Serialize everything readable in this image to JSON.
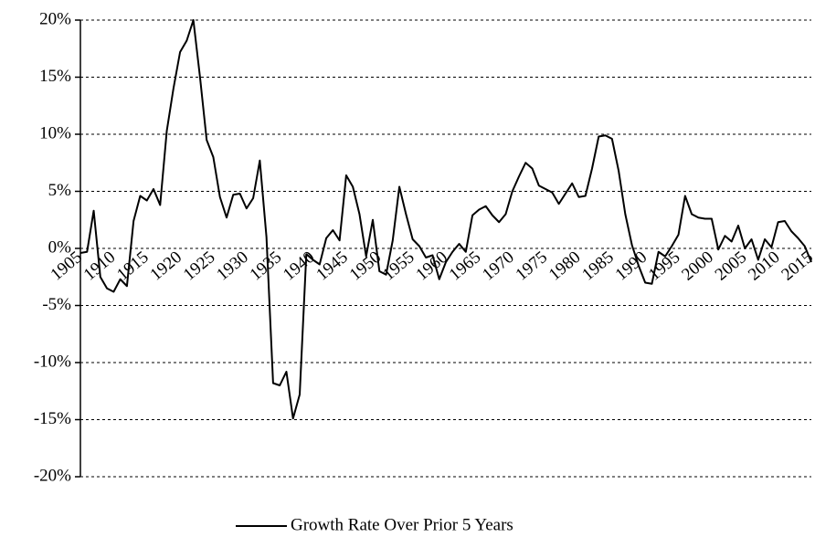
{
  "chart_data": {
    "type": "line",
    "x": [
      1905,
      1906,
      1907,
      1908,
      1909,
      1910,
      1911,
      1912,
      1913,
      1914,
      1915,
      1916,
      1917,
      1918,
      1919,
      1920,
      1921,
      1922,
      1923,
      1924,
      1925,
      1926,
      1927,
      1928,
      1929,
      1930,
      1931,
      1932,
      1933,
      1934,
      1935,
      1936,
      1937,
      1938,
      1939,
      1940,
      1941,
      1942,
      1943,
      1944,
      1945,
      1946,
      1947,
      1948,
      1949,
      1950,
      1951,
      1952,
      1953,
      1954,
      1955,
      1956,
      1957,
      1958,
      1959,
      1960,
      1961,
      1962,
      1963,
      1964,
      1965,
      1966,
      1967,
      1968,
      1969,
      1970,
      1971,
      1972,
      1973,
      1974,
      1975,
      1976,
      1977,
      1978,
      1979,
      1980,
      1981,
      1982,
      1983,
      1984,
      1985,
      1986,
      1987,
      1988,
      1989,
      1990,
      1991,
      1992,
      1993,
      1994,
      1995,
      1996,
      1997,
      1998,
      1999,
      2000,
      2001,
      2002,
      2003,
      2004,
      2005,
      2006,
      2007,
      2008,
      2009,
      2010,
      2011,
      2012,
      2013,
      2014,
      2015
    ],
    "series": [
      {
        "name": "Growth Rate Over Prior 5 Years",
        "color": "#000000",
        "values": [
          -0.4,
          -0.3,
          3.3,
          -2.5,
          -3.5,
          -3.8,
          -2.7,
          -3.3,
          2.4,
          4.6,
          4.2,
          5.2,
          3.8,
          10.3,
          14,
          17.2,
          18.2,
          20,
          15,
          9.5,
          8,
          4.5,
          2.7,
          4.7,
          4.8,
          3.5,
          4.4,
          7.7,
          1,
          -11.8,
          -12,
          -10.8,
          -14.9,
          -12.8,
          -0.5,
          -1,
          -1.4,
          0.9,
          1.6,
          0.7,
          6.4,
          5.4,
          3,
          -0.7,
          2.5,
          -2,
          -2.3,
          0.7,
          5.4,
          3,
          0.8,
          0.2,
          -0.8,
          -0.6,
          -2.7,
          -1.2,
          -0.3,
          0.4,
          -0.3,
          2.9,
          3.4,
          3.7,
          2.9,
          2.3,
          3,
          5,
          6.3,
          7.5,
          7,
          5.5,
          5.2,
          4.9,
          3.9,
          4.8,
          5.7,
          4.5,
          4.6,
          7,
          9.8,
          9.9,
          9.6,
          6.8,
          3,
          0.3,
          -1.5,
          -3,
          -3.1,
          -0.3,
          -0.7,
          0.2,
          1.2,
          4.6,
          3,
          2.7,
          2.6,
          2.6,
          -0.1,
          1.1,
          0.6,
          2,
          0,
          0.8,
          -1,
          0.8,
          0.1,
          2.3,
          2.4,
          1.5,
          0.9,
          0.2,
          -1.2
        ]
      }
    ],
    "xlim": [
      1905,
      2015
    ],
    "xticks": [
      1905,
      1910,
      1915,
      1920,
      1925,
      1930,
      1935,
      1940,
      1945,
      1950,
      1955,
      1960,
      1965,
      1970,
      1975,
      1980,
      1985,
      1990,
      1995,
      2000,
      2005,
      2010,
      2015
    ],
    "ylim": [
      -20,
      20
    ],
    "yticks": [
      {
        "value": -20,
        "label": "-20%"
      },
      {
        "value": -15,
        "label": "-15%"
      },
      {
        "value": -10,
        "label": "-10%"
      },
      {
        "value": -5,
        "label": "-5%"
      },
      {
        "value": 0,
        "label": "0%"
      },
      {
        "value": 5,
        "label": "5%"
      },
      {
        "value": 10,
        "label": "10%"
      },
      {
        "value": 15,
        "label": "15%"
      },
      {
        "value": 20,
        "label": "20%"
      }
    ],
    "grid": true,
    "legend": "bottom"
  }
}
